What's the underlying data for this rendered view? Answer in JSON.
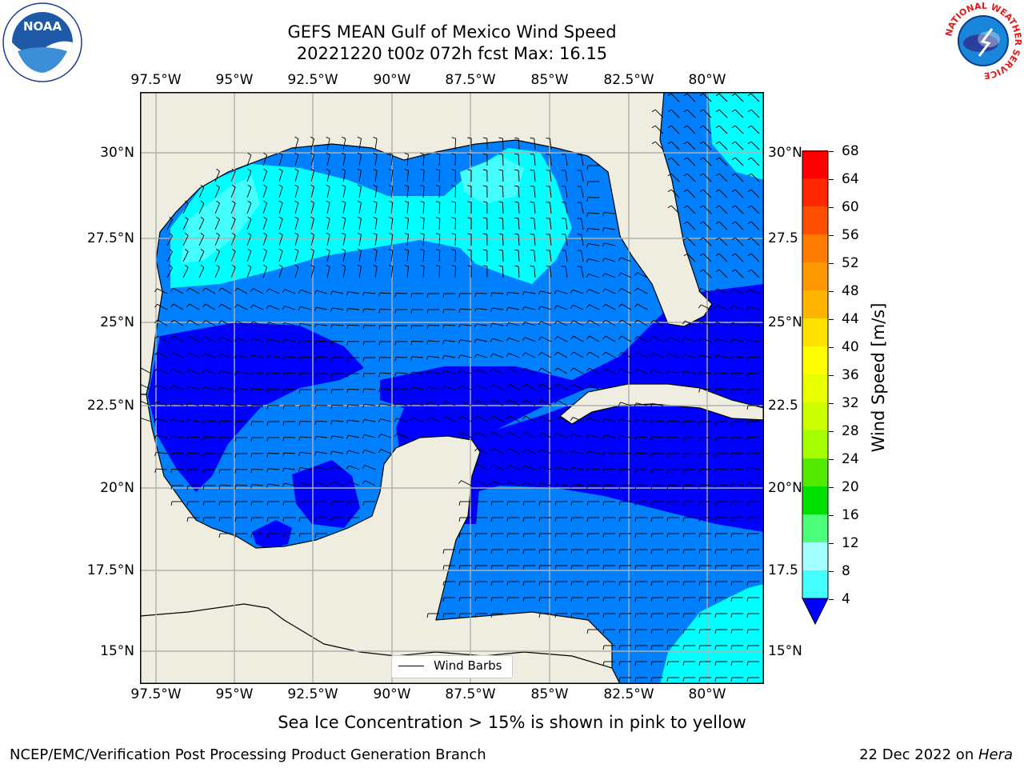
{
  "title": {
    "line1": "GEFS MEAN Gulf of Mexico Wind Speed",
    "line2": "20221220 t00z 072h fcst   Max: 16.15"
  },
  "logos": {
    "left": "NOAA",
    "left_ring": "NATIONAL OCEANIC AND ATMOSPHERIC ADMINISTRATION · U.S. DEPARTMENT OF COMMERCE",
    "right_ring": "NATIONAL WEATHER SERVICE"
  },
  "map": {
    "lon_labels": [
      "97.5°W",
      "95°W",
      "92.5°W",
      "90°W",
      "87.5°W",
      "85°W",
      "82.5°W",
      "80°W"
    ],
    "lat_labels_left": [
      "30°N",
      "27.5°N",
      "25°N",
      "22.5°N",
      "20°N",
      "17.5°N",
      "15°N"
    ],
    "lat_labels_right": [
      "30°N",
      "27.5",
      "25°N",
      "22.5",
      "20°N",
      "17.5",
      "15°N"
    ],
    "legend_label": "Wind Barbs",
    "colors": {
      "land": "#eeeddf",
      "c4_8": "#0080ff",
      "c0_4": "#0000ff",
      "c8_12": "#00ffff",
      "c12_16": "#45ffff",
      "c16_20": "#a0ffff",
      "grid": "#b0b0b0"
    }
  },
  "colorbar": {
    "label": "Wind Speed [m/s]",
    "ticks": [
      "68",
      "64",
      "60",
      "56",
      "52",
      "48",
      "44",
      "40",
      "36",
      "32",
      "28",
      "24",
      "20",
      "16",
      "12",
      "8",
      "4"
    ],
    "colors": [
      "#ff0000",
      "#ff2600",
      "#ff4f00",
      "#ff7a00",
      "#ff9800",
      "#ffb400",
      "#ffe100",
      "#ffff00",
      "#e8ff00",
      "#caff00",
      "#a6ff00",
      "#55e800",
      "#00e000",
      "#4dff7a",
      "#a6ffff",
      "#45ffff",
      "#00ffff",
      "#0080ff"
    ],
    "extend_color": "#0000ff"
  },
  "note": "Sea Ice Concentration > 15% is shown in pink to yellow",
  "footer": {
    "left": "NCEP/EMC/Verification Post Processing Product Generation Branch",
    "date": "22 Dec 2022 on ",
    "machine": "Hera"
  }
}
